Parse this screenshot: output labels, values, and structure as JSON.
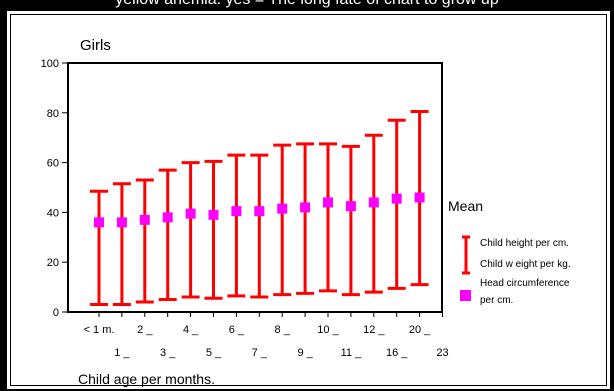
{
  "caption_top": "yellow anemia: yes = The long fate of chart to grow up",
  "chart_data": {
    "type": "errorbar",
    "title": "Girls",
    "xlabel": "Child age per months.",
    "ylabel": "",
    "ylim": [
      0,
      100
    ],
    "yticks": [
      0,
      20,
      40,
      60,
      80,
      100
    ],
    "categories": [
      "< 1 m.",
      "1 _",
      "2 _",
      "3 _",
      "4 _",
      "5 _",
      "6 _",
      "7 _",
      "8 _",
      "9 _",
      "10 _",
      "11 _",
      "12 _",
      "16 _",
      "20 _",
      "23"
    ],
    "series": [
      {
        "kind": "range",
        "low": [
          3,
          3,
          4,
          5,
          6,
          5.5,
          6.5,
          6,
          7,
          7.5,
          8.5,
          7,
          8,
          9.5,
          11,
          null
        ],
        "high": [
          48.5,
          51.5,
          53,
          57,
          60,
          60.5,
          63,
          63,
          67,
          67.5,
          67.5,
          66.5,
          71,
          77,
          80.5,
          null
        ]
      },
      {
        "kind": "point",
        "values": [
          36,
          36,
          37,
          38,
          39.5,
          39,
          40.5,
          40.5,
          41.5,
          42,
          44,
          42.5,
          44,
          45.5,
          46,
          null
        ]
      }
    ],
    "legend": {
      "title": "Mean",
      "entries": [
        {
          "lines": [
            "Child height per cm.",
            "Child w eight per kg."
          ]
        },
        {
          "lines": [
            "Head circumference",
            "per cm."
          ]
        }
      ],
      "placement": "right"
    },
    "grid": false,
    "colors": {
      "range": "#ff0000",
      "point": "#ff00ff"
    }
  }
}
